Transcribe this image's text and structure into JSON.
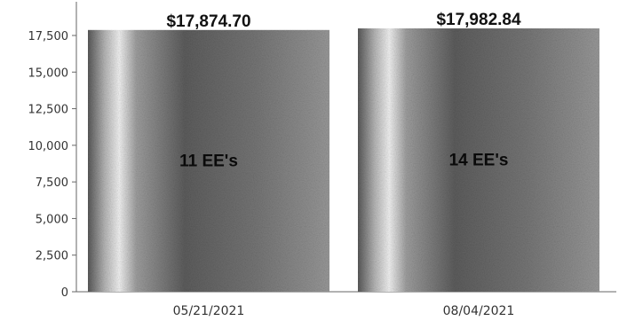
{
  "chart_data": {
    "type": "bar",
    "categories": [
      "05/21/2021",
      "08/04/2021"
    ],
    "values": [
      17874.7,
      17982.84
    ],
    "value_labels": [
      "$17,874.70",
      "$17,982.84"
    ],
    "inner_labels": [
      "11 EE's",
      "14 EE's"
    ],
    "ylim": [
      0,
      17500
    ],
    "yticks": [
      0,
      2500,
      5000,
      7500,
      10000,
      12500,
      15000,
      17500
    ],
    "ytick_labels": [
      "0",
      "2,500",
      "5,000",
      "7,500",
      "10,000",
      "12,500",
      "15,000",
      "17,500"
    ],
    "grid": false,
    "legend": "none",
    "title": "",
    "xlabel": "",
    "ylabel": ""
  },
  "colors": {
    "bar_dark": "#4a4a4a",
    "bar_mid": "#8c8c8c",
    "bar_highlight": "#f2f2f2",
    "axis": "#666666",
    "background": "#ffffff"
  }
}
